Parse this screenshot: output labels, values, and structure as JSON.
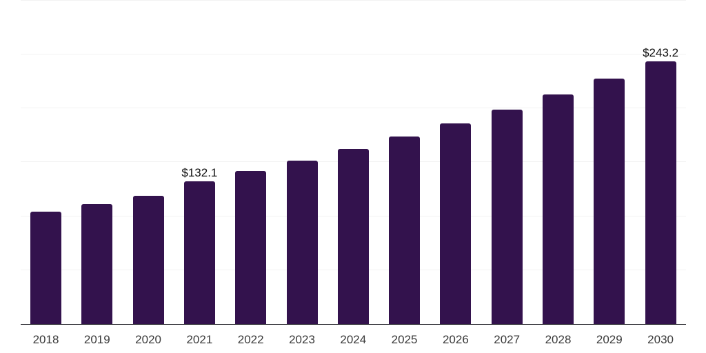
{
  "chart_data": {
    "type": "bar",
    "title": "",
    "xlabel": "",
    "ylabel": "",
    "categories": [
      "2018",
      "2019",
      "2020",
      "2021",
      "2022",
      "2023",
      "2024",
      "2025",
      "2026",
      "2027",
      "2028",
      "2029",
      "2030"
    ],
    "values": [
      103.7,
      110.9,
      118.7,
      132.1,
      141.4,
      151.3,
      161.9,
      173.3,
      185.5,
      198.5,
      212.4,
      227.3,
      243.2
    ],
    "data_labels": {
      "2021": "$132.1",
      "2030": "$243.2"
    },
    "ylim": [
      0,
      300
    ],
    "gridline_step": 50,
    "y_axis_labels_visible": false,
    "legend": "none",
    "grid": "horizontal",
    "colors": {
      "bar": "#33124d",
      "gridline": "#f2f2f2",
      "axis_line": "#26262b",
      "tick_label": "#3a3a3a",
      "data_label": "#101010",
      "background": "#ffffff"
    }
  }
}
